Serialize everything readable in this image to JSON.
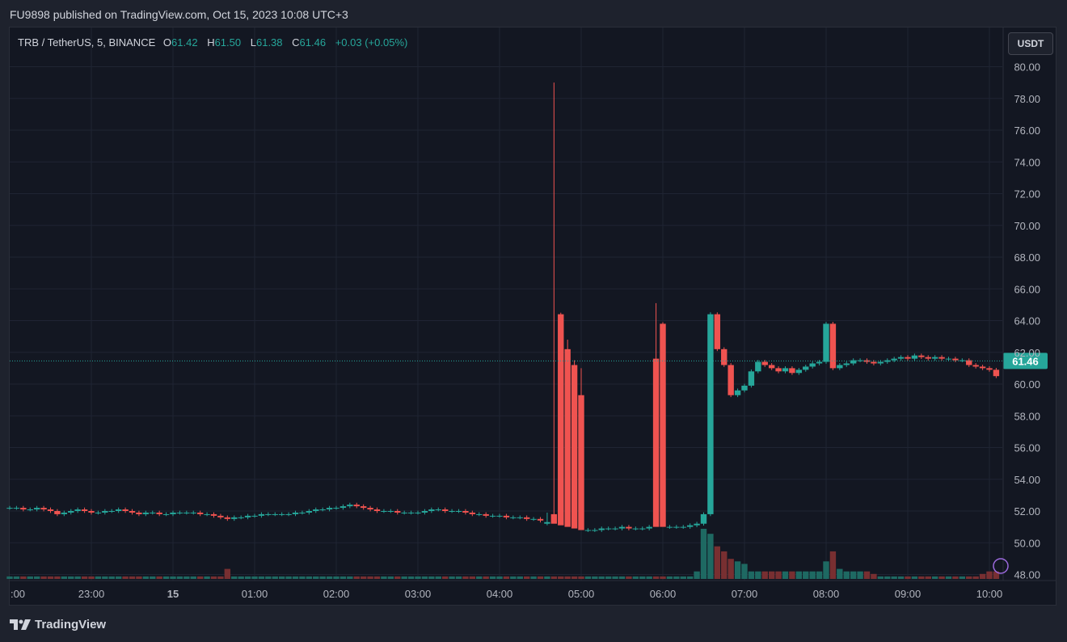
{
  "header": {
    "published_text": "FU9898 published on TradingView.com, Oct 15, 2023 10:08 UTC+3"
  },
  "legend": {
    "symbol": "TRB / TetherUS, 5, BINANCE",
    "o_label": "O",
    "o_value": "61.42",
    "h_label": "H",
    "h_value": "61.50",
    "l_label": "L",
    "l_value": "61.38",
    "c_label": "C",
    "c_value": "61.46",
    "change": "+0.03 (+0.05%)"
  },
  "currency_button": "USDT",
  "footer": {
    "brand": "TradingView"
  },
  "colors": {
    "up": "#26a69a",
    "down": "#ef5350",
    "background": "#131722",
    "grid": "#1f2433",
    "text": "#d1d4dc"
  },
  "chart_data": {
    "type": "candlestick",
    "title": "TRB / TetherUS, 5, BINANCE",
    "ylim": [
      47.4,
      81.2
    ],
    "y_ticks": [
      "48.00",
      "50.00",
      "52.00",
      "54.00",
      "56.00",
      "58.00",
      "60.00",
      "62.00",
      "64.00",
      "66.00",
      "68.00",
      "70.00",
      "72.00",
      "74.00",
      "76.00",
      "78.00",
      "80.00"
    ],
    "x_ticks": [
      {
        "label": ":00",
        "t": 0
      },
      {
        "label": "23:00",
        "t": 60
      },
      {
        "label": "15",
        "t": 120
      },
      {
        "label": "01:00",
        "t": 180
      },
      {
        "label": "02:00",
        "t": 240
      },
      {
        "label": "03:00",
        "t": 300
      },
      {
        "label": "04:00",
        "t": 360
      },
      {
        "label": "05:00",
        "t": 420
      },
      {
        "label": "06:00",
        "t": 480
      },
      {
        "label": "07:00",
        "t": 540
      },
      {
        "label": "08:00",
        "t": 600
      },
      {
        "label": "09:00",
        "t": 660
      },
      {
        "label": "10:00",
        "t": 720
      }
    ],
    "current_price": "61.46",
    "last_close": 61.46,
    "key_candles": [
      {
        "time": "04:35",
        "open": 51.2,
        "high": 51.9,
        "low": 51.1,
        "close": 51.8
      },
      {
        "time": "04:40",
        "open": 51.8,
        "high": 79.0,
        "low": 51.5,
        "close": 64.4
      },
      {
        "time": "04:45",
        "open": 64.4,
        "high": 64.5,
        "low": 61.8,
        "close": 62.2
      },
      {
        "time": "04:50",
        "open": 62.2,
        "high": 62.8,
        "low": 60.5,
        "close": 61.2
      },
      {
        "time": "04:55",
        "open": 61.2,
        "high": 61.5,
        "low": 59.3,
        "close": 59.3
      },
      {
        "time": "05:00",
        "open": 59.3,
        "high": 61.0,
        "low": 58.5,
        "close": 59.6
      },
      {
        "time": "05:55",
        "open": 61.6,
        "high": 65.1,
        "low": 61.3,
        "close": 63.8
      },
      {
        "time": "06:00",
        "open": 63.8,
        "high": 63.9,
        "low": 60.8,
        "close": 61.0
      }
    ],
    "series": [
      {
        "name": "TRB / TetherUS",
        "close": [
          52.2,
          52.2,
          52.1,
          52.1,
          52.2,
          52.1,
          52.0,
          51.8,
          51.9,
          52.0,
          52.1,
          52.0,
          51.9,
          51.9,
          52.0,
          52.0,
          52.1,
          52.0,
          51.9,
          51.8,
          51.9,
          51.9,
          51.8,
          51.8,
          51.9,
          51.9,
          51.9,
          51.9,
          51.8,
          51.8,
          51.7,
          51.6,
          51.5,
          51.6,
          51.6,
          51.7,
          51.7,
          51.8,
          51.8,
          51.8,
          51.8,
          51.8,
          51.9,
          51.9,
          52.0,
          52.1,
          52.1,
          52.2,
          52.2,
          52.3,
          52.4,
          52.3,
          52.2,
          52.1,
          52.0,
          52.0,
          52.0,
          51.9,
          51.9,
          51.9,
          51.9,
          52.0,
          52.1,
          52.1,
          52.0,
          52.0,
          52.0,
          51.9,
          51.8,
          51.8,
          51.7,
          51.7,
          51.7,
          51.6,
          51.6,
          51.6,
          51.5,
          51.5,
          51.4,
          51.3,
          51.2,
          51.1,
          51.0,
          50.9,
          50.8,
          50.8,
          50.8,
          50.9,
          50.9,
          50.9,
          51.0,
          50.9,
          50.9,
          50.9,
          51.0,
          51.0,
          51.0,
          51.0,
          51.0,
          51.0,
          51.1,
          51.2,
          51.8,
          64.4,
          62.2,
          61.2,
          59.3,
          59.6,
          59.9,
          60.8,
          61.4,
          61.2,
          61.0,
          60.8,
          61.0,
          60.7,
          60.9,
          61.1,
          61.3,
          61.4,
          63.8,
          61.0,
          61.2,
          61.3,
          61.5,
          61.5,
          61.4,
          61.3,
          61.4,
          61.5,
          61.6,
          61.7,
          61.6,
          61.8,
          61.7,
          61.6,
          61.7,
          61.6,
          61.6,
          61.5,
          61.5,
          61.2,
          61.1,
          61.0,
          60.9,
          60.5,
          61.0,
          61.2,
          61.2,
          61.3,
          61.4,
          61.4,
          61.3,
          61.4,
          61.3,
          61.4,
          61.4,
          61.5,
          61.3,
          61.2,
          61.2,
          61.1,
          61.1,
          61.0,
          61.0,
          61.2,
          61.3,
          61.4,
          61.5,
          61.6,
          61.8,
          61.7,
          61.6,
          61.5,
          61.5,
          61.5,
          61.6,
          61.5,
          61.5,
          61.5,
          61.6,
          61.6,
          61.5,
          61.5,
          61.46
        ]
      }
    ],
    "volume": [
      1,
      1,
      1,
      1,
      1,
      1,
      1,
      1,
      1,
      1,
      1,
      1,
      1,
      1,
      1,
      1,
      1,
      1,
      1,
      1,
      1,
      1,
      1,
      1,
      1,
      1,
      1,
      1,
      1,
      1,
      1,
      1,
      4,
      1,
      1,
      1,
      1,
      1,
      1,
      1,
      1,
      1,
      1,
      1,
      1,
      1,
      1,
      1,
      1,
      1,
      1,
      1,
      1,
      1,
      1,
      1,
      1,
      1,
      1,
      1,
      1,
      1,
      1,
      1,
      1,
      1,
      1,
      1,
      1,
      1,
      1,
      1,
      1,
      1,
      1,
      1,
      1,
      1,
      1,
      1,
      1,
      1,
      1,
      1,
      1,
      1,
      1,
      1,
      1,
      1,
      1,
      1,
      1,
      1,
      1,
      1,
      1,
      1,
      1,
      1,
      1,
      3,
      20,
      18,
      13,
      11,
      8,
      7,
      6,
      3,
      3,
      3,
      3,
      3,
      3,
      3,
      3,
      3,
      3,
      3,
      7,
      11,
      4,
      3,
      3,
      3,
      3,
      2,
      1,
      1,
      1,
      1,
      1,
      1,
      1,
      1,
      1,
      1,
      1,
      1,
      1,
      1,
      1,
      2,
      3,
      3,
      2,
      2,
      1,
      1,
      1,
      1,
      1,
      1,
      1,
      1,
      1,
      1,
      1,
      1,
      1,
      1,
      1,
      1,
      1,
      1,
      1,
      1,
      1,
      1,
      1,
      1,
      1,
      1,
      1,
      1,
      1,
      1,
      1,
      1,
      1,
      1,
      1,
      1,
      1,
      1,
      1
    ]
  }
}
